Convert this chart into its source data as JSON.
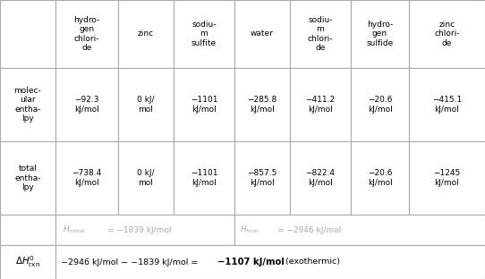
{
  "col_headers": [
    "hydro-\ngen\nchlori-\nde",
    "zinc",
    "sodiu-\nm\nsulfite",
    "water",
    "sodiu-\nm\nchlori-\nde",
    "hydro-\ngen\nsulfide",
    "zinc\nchlori-\nde"
  ],
  "mol_enthalpy": [
    "−92.3\nkJ/mol",
    "0 kJ/\nmol",
    "−1101\nkJ/mol",
    "−285.8\nkJ/mol",
    "−411.2\nkJ/mol",
    "−20.6\nkJ/mol",
    "−415.1\nkJ/mol"
  ],
  "tot_enthalpy": [
    "−738.4\nkJ/mol",
    "0 kJ/\nmol",
    "−1101\nkJ/mol",
    "−857.5\nkJ/mol",
    "−822.4\nkJ/mol",
    "−20.6\nkJ/mol",
    "−1245\nkJ/mol"
  ],
  "row_label_mol": "molec-\nular\nentha-\nlpy",
  "row_label_tot": "total\nentha-\nlpy",
  "delta_label": "ΔH⁰_rxn",
  "h_initial_val": "= −1839 kJ/mol",
  "h_final_val": "= −2946 kJ/mol",
  "delta_eq_plain": "−2946 kJ/mol − −1839 kJ/mol = ",
  "delta_eq_bold": "−1107 kJ/mol",
  "delta_eq_end": " (exothermic)",
  "background": "#ffffff",
  "text_color": "#000000",
  "grid_color": "#aaaaaa",
  "light_text": "#aaaaaa",
  "fig_w": 5.42,
  "fig_h": 3.12,
  "dpi": 100
}
